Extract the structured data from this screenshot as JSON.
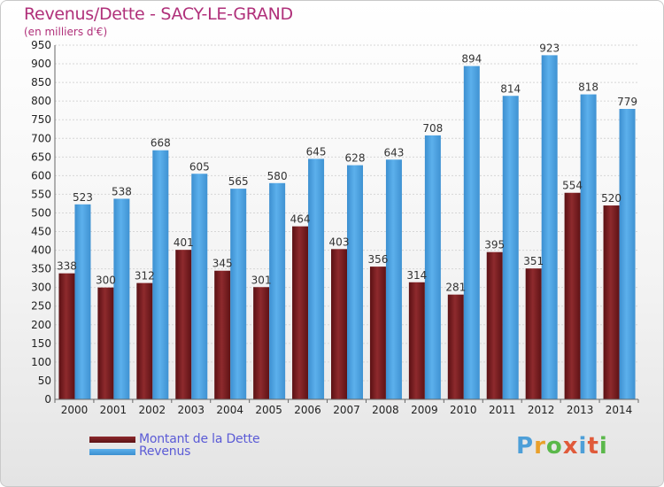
{
  "header": {
    "title": "Revenus/Dette - SACY-LE-GRAND",
    "subtitle": "(en milliers d'€)"
  },
  "legend": {
    "debt": "Montant de la Dette",
    "revenue": "Revenus"
  },
  "logo": {
    "text": "Proxiti",
    "letters": [
      "P",
      "r",
      "o",
      "x",
      "i",
      "t",
      "i"
    ],
    "colors": [
      "#4d9fd8",
      "#e9a02b",
      "#5ab84a",
      "#e05a3a",
      "#4d9fd8",
      "#e05a3a",
      "#5ab84a"
    ]
  },
  "colors": {
    "debt": "#7a1c1f",
    "revenue": "#4da3e3",
    "title": "#b0307a",
    "legend_text": "#5b5bd6"
  },
  "chart_data": {
    "type": "bar",
    "title": "Revenus/Dette - SACY-LE-GRAND",
    "subtitle": "(en milliers d'€)",
    "xlabel": "",
    "ylabel": "",
    "categories": [
      "2000",
      "2001",
      "2002",
      "2003",
      "2004",
      "2005",
      "2006",
      "2007",
      "2008",
      "2009",
      "2010",
      "2011",
      "2012",
      "2013",
      "2014"
    ],
    "series": [
      {
        "name": "Montant de la Dette",
        "values": [
          338,
          300,
          312,
          401,
          345,
          301,
          464,
          403,
          356,
          314,
          281,
          395,
          351,
          554,
          520
        ]
      },
      {
        "name": "Revenus",
        "values": [
          523,
          538,
          668,
          605,
          565,
          580,
          645,
          628,
          643,
          708,
          894,
          814,
          923,
          818,
          779
        ]
      }
    ],
    "ylim": [
      0,
      950
    ],
    "ytick_step": 50,
    "grid": true,
    "legend_position": "bottom-left"
  }
}
